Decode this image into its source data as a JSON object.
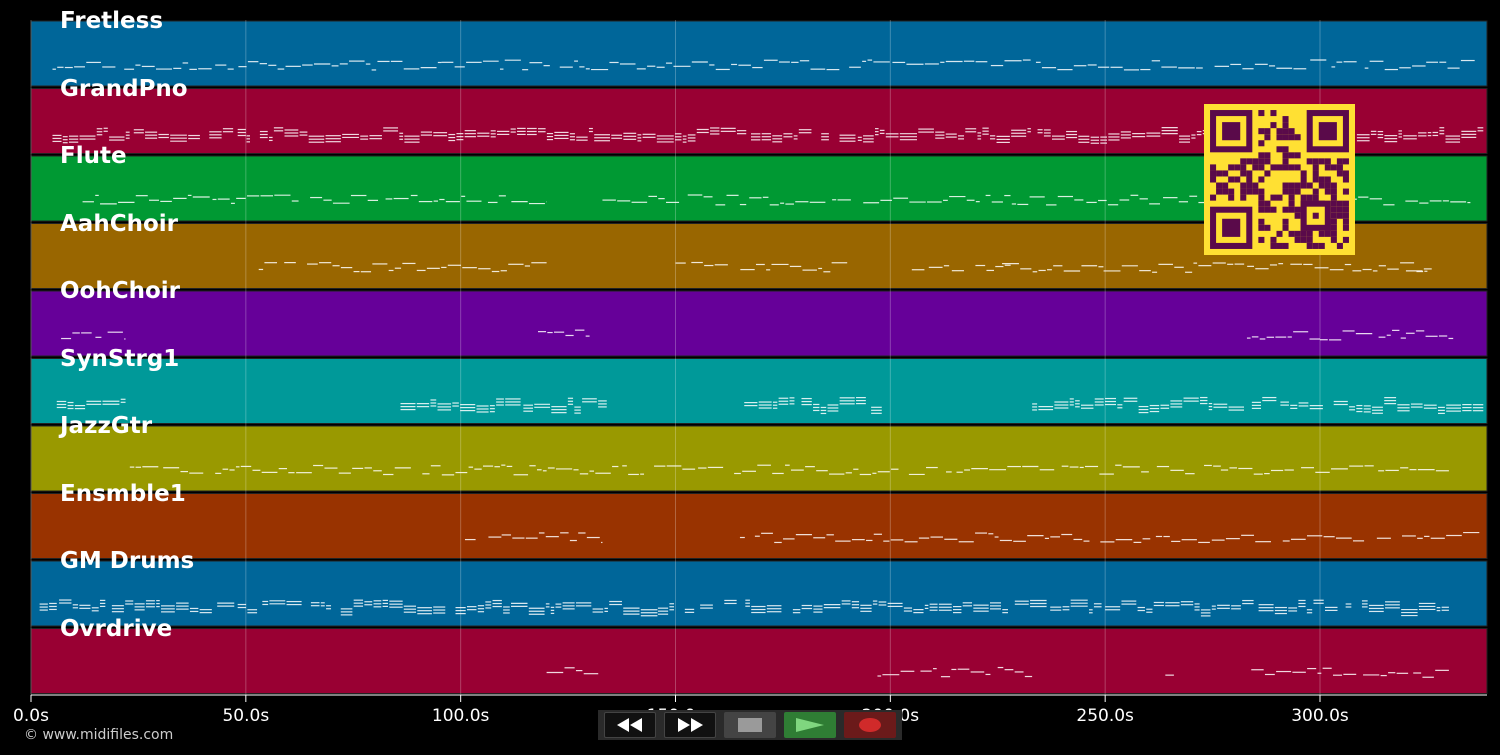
{
  "tracks": [
    {
      "name": "Fretless",
      "color": "#006699"
    },
    {
      "name": "GrandPno",
      "color": "#990033"
    },
    {
      "name": "Flute",
      "color": "#009933"
    },
    {
      "name": "AahChoir",
      "color": "#996600"
    },
    {
      "name": "OohChoir",
      "color": "#660099"
    },
    {
      "name": "SynStrg1",
      "color": "#009999"
    },
    {
      "name": "JazzGtr",
      "color": "#999900"
    },
    {
      "name": "Ensmble1",
      "color": "#993300"
    },
    {
      "name": "GM Drums",
      "color": "#006699"
    },
    {
      "name": "Ovrdrive",
      "color": "#990033"
    }
  ],
  "timeline": {
    "ticks": [
      "0.0s",
      "50.0s",
      "100.0s",
      "150.0s",
      "200.0s",
      "250.0s",
      "300.0s"
    ],
    "tick_values": [
      0,
      50,
      100,
      150,
      200,
      250,
      300
    ],
    "duration": 338
  },
  "qr_code": {
    "fg": "#5a0a4a",
    "bg": "#ffe033",
    "icon": "qr-code-icon"
  },
  "controls": {
    "rewind": "rewind-icon",
    "fast_forward": "fast-forward-icon",
    "stop": "stop-icon",
    "play": "play-icon",
    "record": "record-icon"
  },
  "footer": {
    "copyright": "© www.midifiles.com"
  }
}
